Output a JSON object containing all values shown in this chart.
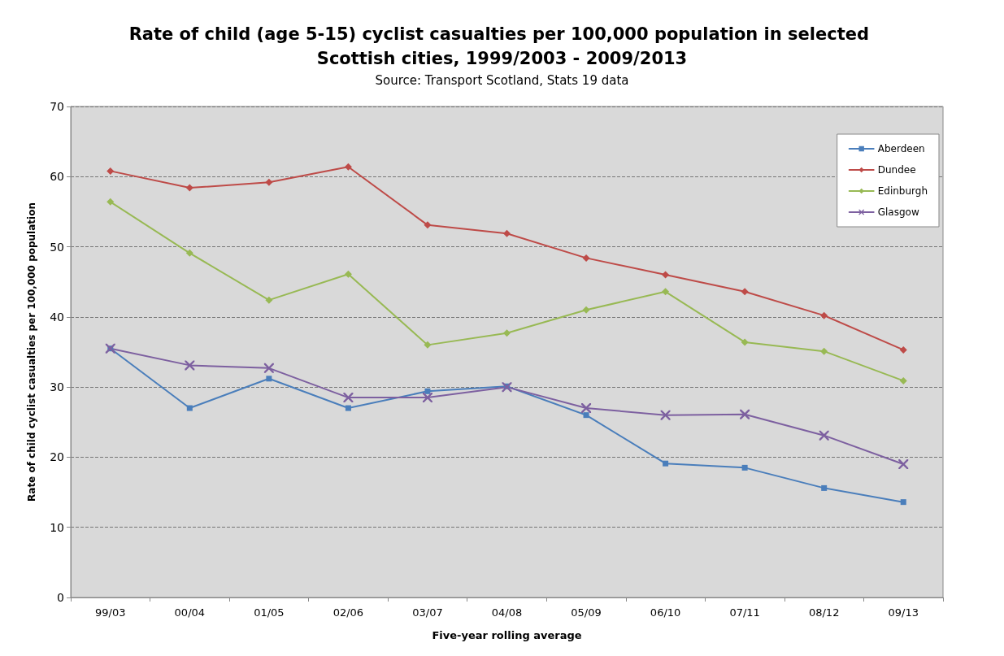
{
  "chart_data": {
    "type": "line",
    "title": "Rate of child (age 5-15) cyclist casualties per 100,000 population in selected Scottish cities, 1999/2003 - 2009/2013",
    "subtitle": "Source: Transport Scotland, Stats 19 data",
    "xlabel": "Five-year rolling average",
    "ylabel": "Rate of child cyclist casualties per 100,000 population",
    "categories": [
      "99/03",
      "00/04",
      "01/05",
      "02/06",
      "03/07",
      "04/08",
      "05/09",
      "06/10",
      "07/11",
      "08/12",
      "09/13"
    ],
    "series": [
      {
        "name": "Aberdeen",
        "color": "#4a7ebb",
        "marker": "square",
        "values": [
          35.5,
          27.0,
          31.2,
          27.0,
          29.4,
          30.1,
          26.0,
          19.1,
          18.5,
          15.6,
          13.6
        ]
      },
      {
        "name": "Dundee",
        "color": "#be4b48",
        "marker": "diamond",
        "values": [
          60.8,
          58.4,
          59.2,
          61.4,
          53.1,
          51.9,
          48.4,
          46.0,
          43.6,
          40.2,
          35.3
        ]
      },
      {
        "name": "Edinburgh",
        "color": "#98b954",
        "marker": "diamond",
        "values": [
          56.4,
          49.1,
          42.4,
          46.1,
          36.0,
          37.7,
          41.0,
          43.6,
          36.4,
          35.1,
          30.9
        ]
      },
      {
        "name": "Glasgow",
        "color": "#7d60a0",
        "marker": "cross",
        "values": [
          35.5,
          33.1,
          32.7,
          28.5,
          28.5,
          30.0,
          27.0,
          26.0,
          26.1,
          23.1,
          19.0
        ]
      }
    ],
    "ylim": [
      0,
      70
    ],
    "yticks": [
      0,
      10,
      20,
      30,
      40,
      50,
      60,
      70
    ],
    "grid": "y",
    "legend": "top right",
    "line_style": "solid"
  }
}
